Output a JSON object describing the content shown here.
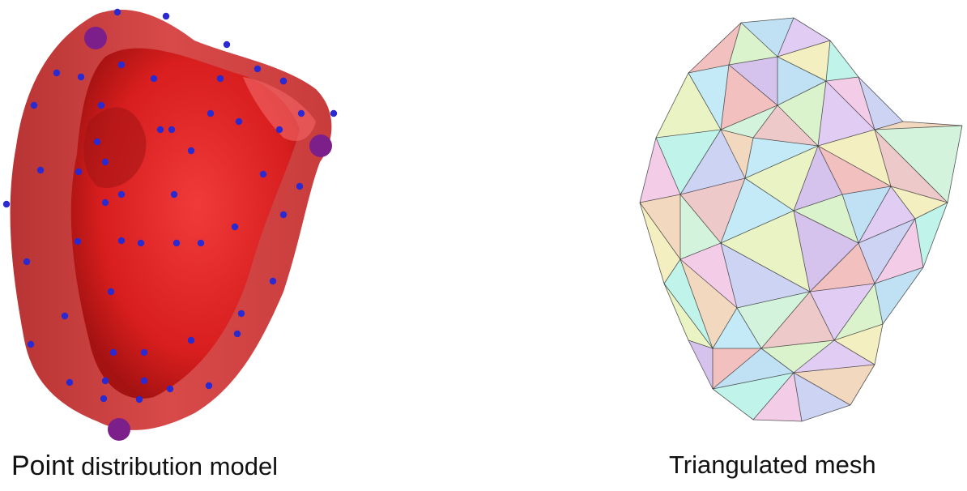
{
  "panels": {
    "left": {
      "caption_first": "Point",
      "caption_rest": " distribution model",
      "surface_color": "#d42a2a",
      "landmark_color": "#2a2ad0",
      "anchor_color": "#7d1f8a"
    },
    "right": {
      "caption": "Triangulated mesh",
      "edge_color": "#222222"
    }
  }
}
